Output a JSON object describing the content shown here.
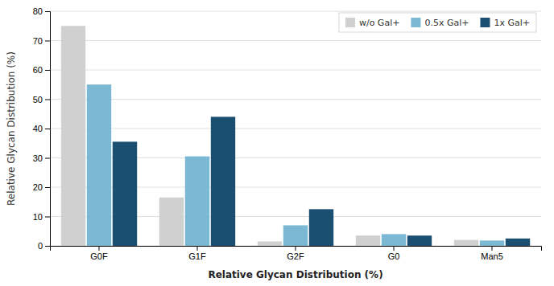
{
  "chart_data": {
    "type": "bar",
    "categories": [
      "G0F",
      "G1F",
      "G2F",
      "G0",
      "Man5"
    ],
    "series": [
      {
        "name": "w/o Gal+",
        "color": "#d0d0d0",
        "values": [
          75,
          16.5,
          1.5,
          3.5,
          2.0
        ]
      },
      {
        "name": "0.5x Gal+",
        "color": "#7ab8d4",
        "values": [
          55,
          30.5,
          7.0,
          4.0,
          1.8
        ]
      },
      {
        "name": "1x Gal+",
        "color": "#1b4f72",
        "values": [
          35.5,
          44,
          12.5,
          3.5,
          2.5
        ]
      }
    ],
    "xlabel": "Relative Glycan Distribution (%)",
    "ylabel": "Relative Glycan Distribution (%)",
    "ylim": [
      0,
      80
    ],
    "yticks": [
      0,
      10,
      20,
      30,
      40,
      50,
      60,
      70,
      80
    ],
    "grid": true,
    "legend": "upper right"
  }
}
